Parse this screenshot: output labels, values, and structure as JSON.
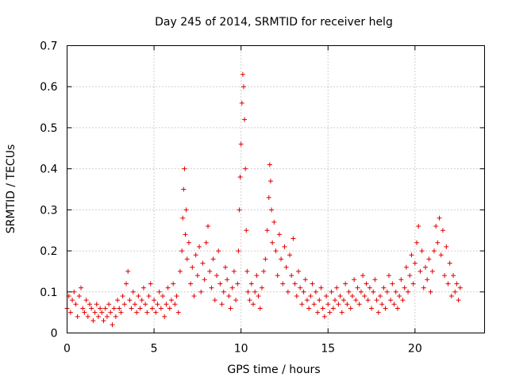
{
  "chart_data": {
    "type": "scatter",
    "title": "Day 245 of 2014, SRMTID for receiver helg",
    "xlabel": "GPS time / hours",
    "ylabel": "SRMTID / TECUs",
    "xlim": [
      0,
      24
    ],
    "ylim": [
      0,
      0.7
    ],
    "xticks": [
      "0",
      "5",
      "10",
      "15",
      "20"
    ],
    "xtick_values": [
      0,
      5,
      10,
      15,
      20
    ],
    "yticks": [
      "0",
      "0.1",
      "0.2",
      "0.3",
      "0.4",
      "0.5",
      "0.6",
      "0.7"
    ],
    "ytick_values": [
      0,
      0.1,
      0.2,
      0.3,
      0.4,
      0.5,
      0.6,
      0.7
    ],
    "grid": true,
    "marker": "+",
    "color": "#e00000",
    "series": [
      {
        "name": "SRMTID",
        "points": [
          [
            0.0,
            0.06
          ],
          [
            0.1,
            0.09
          ],
          [
            0.2,
            0.05
          ],
          [
            0.3,
            0.08
          ],
          [
            0.4,
            0.1
          ],
          [
            0.5,
            0.07
          ],
          [
            0.6,
            0.04
          ],
          [
            0.7,
            0.09
          ],
          [
            0.8,
            0.11
          ],
          [
            0.9,
            0.06
          ],
          [
            1.0,
            0.05
          ],
          [
            1.1,
            0.08
          ],
          [
            1.2,
            0.04
          ],
          [
            1.3,
            0.07
          ],
          [
            1.4,
            0.06
          ],
          [
            1.5,
            0.03
          ],
          [
            1.6,
            0.05
          ],
          [
            1.7,
            0.07
          ],
          [
            1.8,
            0.04
          ],
          [
            1.9,
            0.06
          ],
          [
            2.0,
            0.05
          ],
          [
            2.1,
            0.03
          ],
          [
            2.2,
            0.06
          ],
          [
            2.3,
            0.04
          ],
          [
            2.4,
            0.07
          ],
          [
            2.5,
            0.05
          ],
          [
            2.6,
            0.02
          ],
          [
            2.7,
            0.06
          ],
          [
            2.8,
            0.04
          ],
          [
            2.9,
            0.08
          ],
          [
            3.0,
            0.06
          ],
          [
            3.1,
            0.05
          ],
          [
            3.2,
            0.09
          ],
          [
            3.3,
            0.07
          ],
          [
            3.4,
            0.12
          ],
          [
            3.5,
            0.15
          ],
          [
            3.6,
            0.08
          ],
          [
            3.7,
            0.06
          ],
          [
            3.8,
            0.1
          ],
          [
            3.9,
            0.07
          ],
          [
            4.0,
            0.05
          ],
          [
            4.1,
            0.09
          ],
          [
            4.2,
            0.06
          ],
          [
            4.3,
            0.08
          ],
          [
            4.4,
            0.11
          ],
          [
            4.5,
            0.07
          ],
          [
            4.6,
            0.05
          ],
          [
            4.7,
            0.09
          ],
          [
            4.8,
            0.12
          ],
          [
            4.9,
            0.06
          ],
          [
            5.0,
            0.08
          ],
          [
            5.1,
            0.05
          ],
          [
            5.2,
            0.07
          ],
          [
            5.3,
            0.1
          ],
          [
            5.4,
            0.06
          ],
          [
            5.5,
            0.09
          ],
          [
            5.6,
            0.04
          ],
          [
            5.7,
            0.07
          ],
          [
            5.8,
            0.11
          ],
          [
            5.9,
            0.06
          ],
          [
            6.0,
            0.08
          ],
          [
            6.1,
            0.12
          ],
          [
            6.2,
            0.07
          ],
          [
            6.3,
            0.09
          ],
          [
            6.4,
            0.05
          ],
          [
            6.5,
            0.15
          ],
          [
            6.6,
            0.2
          ],
          [
            6.65,
            0.28
          ],
          [
            6.7,
            0.35
          ],
          [
            6.75,
            0.4
          ],
          [
            6.8,
            0.24
          ],
          [
            6.85,
            0.3
          ],
          [
            6.9,
            0.18
          ],
          [
            7.0,
            0.22
          ],
          [
            7.1,
            0.12
          ],
          [
            7.2,
            0.16
          ],
          [
            7.3,
            0.09
          ],
          [
            7.4,
            0.19
          ],
          [
            7.5,
            0.14
          ],
          [
            7.6,
            0.21
          ],
          [
            7.7,
            0.1
          ],
          [
            7.8,
            0.17
          ],
          [
            7.9,
            0.13
          ],
          [
            8.0,
            0.22
          ],
          [
            8.1,
            0.26
          ],
          [
            8.2,
            0.15
          ],
          [
            8.3,
            0.11
          ],
          [
            8.4,
            0.18
          ],
          [
            8.5,
            0.08
          ],
          [
            8.6,
            0.14
          ],
          [
            8.7,
            0.2
          ],
          [
            8.8,
            0.12
          ],
          [
            8.9,
            0.07
          ],
          [
            9.0,
            0.1
          ],
          [
            9.1,
            0.16
          ],
          [
            9.2,
            0.13
          ],
          [
            9.3,
            0.09
          ],
          [
            9.4,
            0.06
          ],
          [
            9.5,
            0.11
          ],
          [
            9.6,
            0.15
          ],
          [
            9.7,
            0.08
          ],
          [
            9.8,
            0.12
          ],
          [
            9.85,
            0.2
          ],
          [
            9.9,
            0.3
          ],
          [
            9.95,
            0.38
          ],
          [
            10.0,
            0.46
          ],
          [
            10.05,
            0.56
          ],
          [
            10.1,
            0.63
          ],
          [
            10.15,
            0.6
          ],
          [
            10.2,
            0.52
          ],
          [
            10.25,
            0.4
          ],
          [
            10.3,
            0.25
          ],
          [
            10.35,
            0.15
          ],
          [
            10.4,
            0.1
          ],
          [
            10.5,
            0.08
          ],
          [
            10.6,
            0.12
          ],
          [
            10.7,
            0.07
          ],
          [
            10.8,
            0.1
          ],
          [
            10.9,
            0.14
          ],
          [
            11.0,
            0.09
          ],
          [
            11.1,
            0.06
          ],
          [
            11.2,
            0.11
          ],
          [
            11.3,
            0.15
          ],
          [
            11.4,
            0.18
          ],
          [
            11.5,
            0.25
          ],
          [
            11.6,
            0.33
          ],
          [
            11.65,
            0.41
          ],
          [
            11.7,
            0.37
          ],
          [
            11.75,
            0.3
          ],
          [
            11.8,
            0.22
          ],
          [
            11.9,
            0.27
          ],
          [
            12.0,
            0.2
          ],
          [
            12.1,
            0.14
          ],
          [
            12.2,
            0.24
          ],
          [
            12.3,
            0.18
          ],
          [
            12.4,
            0.12
          ],
          [
            12.5,
            0.21
          ],
          [
            12.6,
            0.16
          ],
          [
            12.7,
            0.1
          ],
          [
            12.8,
            0.19
          ],
          [
            12.9,
            0.14
          ],
          [
            13.0,
            0.23
          ],
          [
            13.1,
            0.12
          ],
          [
            13.2,
            0.09
          ],
          [
            13.3,
            0.15
          ],
          [
            13.4,
            0.11
          ],
          [
            13.5,
            0.07
          ],
          [
            13.6,
            0.1
          ],
          [
            13.7,
            0.13
          ],
          [
            13.8,
            0.08
          ],
          [
            13.9,
            0.06
          ],
          [
            14.0,
            0.09
          ],
          [
            14.1,
            0.12
          ],
          [
            14.2,
            0.07
          ],
          [
            14.3,
            0.1
          ],
          [
            14.4,
            0.05
          ],
          [
            14.5,
            0.08
          ],
          [
            14.6,
            0.11
          ],
          [
            14.7,
            0.06
          ],
          [
            14.8,
            0.04
          ],
          [
            14.9,
            0.09
          ],
          [
            15.0,
            0.07
          ],
          [
            15.1,
            0.05
          ],
          [
            15.2,
            0.1
          ],
          [
            15.3,
            0.06
          ],
          [
            15.4,
            0.08
          ],
          [
            15.5,
            0.11
          ],
          [
            15.6,
            0.07
          ],
          [
            15.7,
            0.09
          ],
          [
            15.8,
            0.05
          ],
          [
            15.9,
            0.08
          ],
          [
            16.0,
            0.12
          ],
          [
            16.1,
            0.07
          ],
          [
            16.2,
            0.1
          ],
          [
            16.3,
            0.06
          ],
          [
            16.4,
            0.09
          ],
          [
            16.5,
            0.13
          ],
          [
            16.6,
            0.08
          ],
          [
            16.7,
            0.11
          ],
          [
            16.8,
            0.07
          ],
          [
            16.9,
            0.1
          ],
          [
            17.0,
            0.14
          ],
          [
            17.1,
            0.09
          ],
          [
            17.2,
            0.12
          ],
          [
            17.3,
            0.08
          ],
          [
            17.4,
            0.11
          ],
          [
            17.5,
            0.06
          ],
          [
            17.6,
            0.1
          ],
          [
            17.7,
            0.13
          ],
          [
            17.8,
            0.08
          ],
          [
            17.9,
            0.05
          ],
          [
            18.0,
            0.09
          ],
          [
            18.1,
            0.07
          ],
          [
            18.2,
            0.11
          ],
          [
            18.3,
            0.06
          ],
          [
            18.4,
            0.1
          ],
          [
            18.5,
            0.14
          ],
          [
            18.6,
            0.08
          ],
          [
            18.7,
            0.12
          ],
          [
            18.8,
            0.07
          ],
          [
            18.9,
            0.1
          ],
          [
            19.0,
            0.06
          ],
          [
            19.1,
            0.09
          ],
          [
            19.2,
            0.13
          ],
          [
            19.3,
            0.08
          ],
          [
            19.4,
            0.11
          ],
          [
            19.5,
            0.16
          ],
          [
            19.6,
            0.1
          ],
          [
            19.7,
            0.14
          ],
          [
            19.8,
            0.19
          ],
          [
            19.9,
            0.12
          ],
          [
            20.0,
            0.17
          ],
          [
            20.1,
            0.22
          ],
          [
            20.2,
            0.26
          ],
          [
            20.3,
            0.15
          ],
          [
            20.4,
            0.2
          ],
          [
            20.5,
            0.11
          ],
          [
            20.6,
            0.16
          ],
          [
            20.7,
            0.13
          ],
          [
            20.8,
            0.18
          ],
          [
            20.9,
            0.1
          ],
          [
            21.0,
            0.15
          ],
          [
            21.1,
            0.2
          ],
          [
            21.2,
            0.26
          ],
          [
            21.3,
            0.22
          ],
          [
            21.4,
            0.28
          ],
          [
            21.5,
            0.19
          ],
          [
            21.6,
            0.25
          ],
          [
            21.7,
            0.14
          ],
          [
            21.8,
            0.21
          ],
          [
            21.9,
            0.12
          ],
          [
            22.0,
            0.17
          ],
          [
            22.1,
            0.09
          ],
          [
            22.2,
            0.14
          ],
          [
            22.3,
            0.1
          ],
          [
            22.4,
            0.12
          ],
          [
            22.5,
            0.08
          ],
          [
            22.6,
            0.11
          ]
        ]
      }
    ]
  }
}
